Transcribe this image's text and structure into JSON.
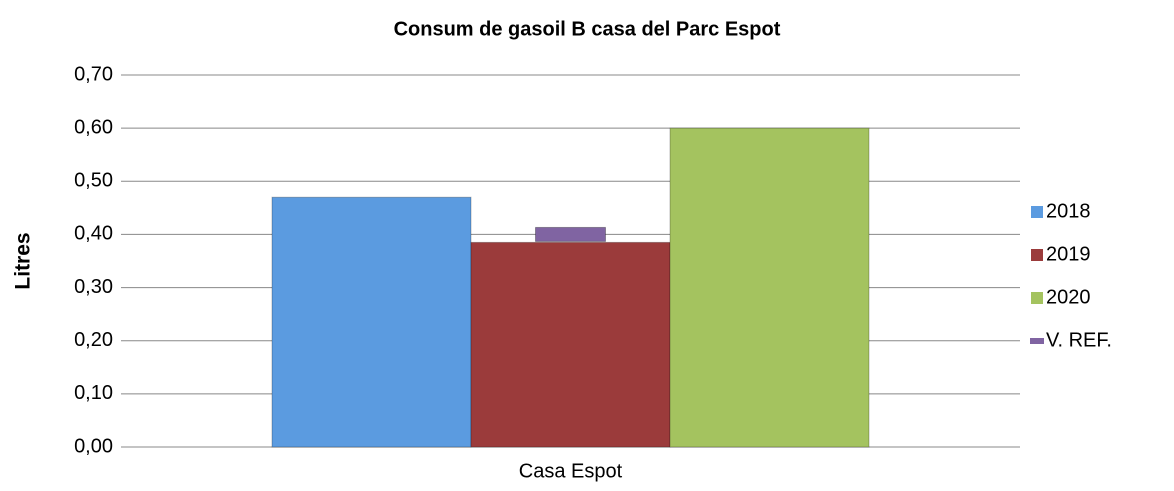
{
  "chart_data": {
    "type": "bar",
    "title": "Consum de  gasoil B casa  del Parc  Espot",
    "ylabel": "Litres",
    "categories": [
      "Casa Espot"
    ],
    "series": [
      {
        "name": "2018",
        "color": "#5b9be0",
        "values": [
          0.47
        ]
      },
      {
        "name": "2019",
        "color": "#9b3b3b",
        "values": [
          0.385
        ]
      },
      {
        "name": "2020",
        "color": "#a4c35f",
        "values": [
          0.6
        ]
      },
      {
        "name": "V. REF.",
        "color": "#8064a2",
        "values": [
          0.4
        ],
        "style": "marker"
      }
    ],
    "ylim": [
      0,
      0.7
    ],
    "yticks": [
      {
        "value": 0,
        "label": "0,00"
      },
      {
        "value": 0.1,
        "label": "0,10"
      },
      {
        "value": 0.2,
        "label": "0,20"
      },
      {
        "value": 0.3,
        "label": "0,30"
      },
      {
        "value": 0.4,
        "label": "0,40"
      },
      {
        "value": 0.5,
        "label": "0,50"
      },
      {
        "value": 0.6,
        "label": "0,60"
      },
      {
        "value": 0.7,
        "label": "0,70"
      }
    ],
    "grid": true,
    "legend": "right"
  }
}
